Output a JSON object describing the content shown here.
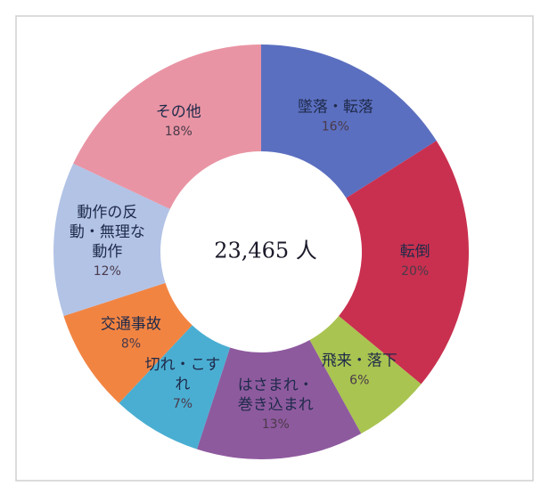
{
  "chart_data": {
    "type": "donut",
    "center_text": "23,465 人",
    "categories": [
      [
        "墜落・転落"
      ],
      [
        "転倒"
      ],
      [
        "飛来・落下"
      ],
      [
        "はさまれ・",
        "巻き込まれ"
      ],
      [
        "切れ・こす",
        "れ"
      ],
      [
        "交通事故"
      ],
      [
        "動作の反",
        "動・無理な",
        "動作"
      ],
      [
        "その他"
      ]
    ],
    "values": [
      16,
      20,
      6,
      13,
      7,
      8,
      12,
      18
    ],
    "value_labels": [
      "16%",
      "20%",
      "6%",
      "13%",
      "7%",
      "8%",
      "12%",
      "18%"
    ],
    "colors": [
      "#5b6fc0",
      "#c9304f",
      "#a9c450",
      "#8e5a9e",
      "#4aaed2",
      "#f28442",
      "#b2c3e6",
      "#e994a4"
    ]
  }
}
